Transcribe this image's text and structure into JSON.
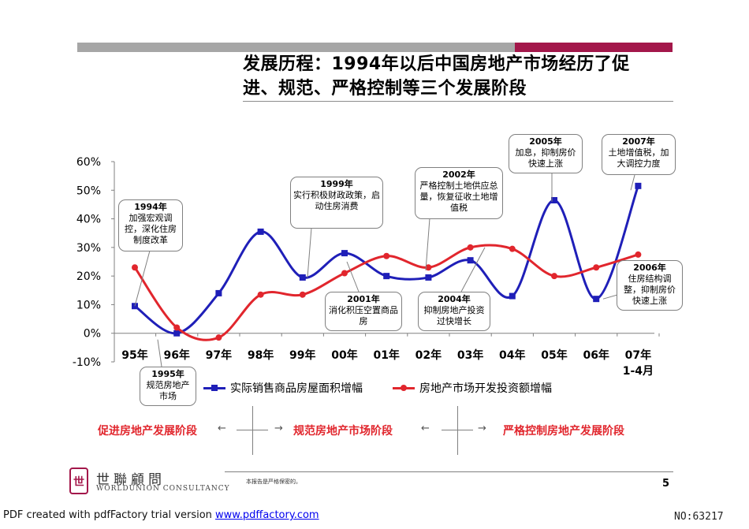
{
  "header": {
    "title_line1": "发展历程：1994年以后中国房地产市场经历了促",
    "title_line2": "进、规范、严格控制等三个发展阶段"
  },
  "colors": {
    "series1": "#1f1fb8",
    "series2": "#e1262d",
    "accent": "#a3174a",
    "gray_bar": "#a6a6a6"
  },
  "chart_data": {
    "type": "line",
    "categories": [
      "95年",
      "96年",
      "97年",
      "98年",
      "99年",
      "00年",
      "01年",
      "02年",
      "03年",
      "04年",
      "05年",
      "06年",
      "07年"
    ],
    "category_sublabel": "1-4月",
    "ylim": [
      -10,
      60
    ],
    "yticks": [
      "60%",
      "50%",
      "40%",
      "30%",
      "20%",
      "10%",
      "0%",
      "-10%"
    ],
    "ytick_values": [
      60,
      50,
      40,
      30,
      20,
      10,
      0,
      -10
    ],
    "series": [
      {
        "name": "实际销售商品房屋面积增幅",
        "values": [
          9.5,
          0,
          14,
          35.5,
          19.5,
          28,
          20,
          19.5,
          25.5,
          13,
          46.5,
          12,
          51.5
        ]
      },
      {
        "name": "房地产市场开发投资额增幅",
        "values": [
          23,
          2,
          -1.5,
          13.5,
          13.5,
          21,
          27,
          23,
          30,
          29.5,
          20,
          23,
          27.5
        ]
      }
    ]
  },
  "callouts": [
    {
      "id": "c1994",
      "year": "1994年",
      "text": "加强宏观调控，深化住房制度改革"
    },
    {
      "id": "c1995",
      "year": "1995年",
      "text": "规范房地产市场"
    },
    {
      "id": "c1999",
      "year": "1999年",
      "text": "实行积极财政政策，启动住房消费"
    },
    {
      "id": "c2001",
      "year": "2001年",
      "text": "消化积压空置商品房"
    },
    {
      "id": "c2002",
      "year": "2002年",
      "text": "严格控制土地供应总量，恢复征收土地增值税"
    },
    {
      "id": "c2004",
      "year": "2004年",
      "text": "抑制房地产投资过快增长"
    },
    {
      "id": "c2005",
      "year": "2005年",
      "text": "加息，抑制房价快速上涨"
    },
    {
      "id": "c2006",
      "year": "2006年",
      "text": "住房结构调整，抑制房价快速上涨"
    },
    {
      "id": "c2007",
      "year": "2007年",
      "text": "土地增值税，加大调控力度"
    }
  ],
  "stages": [
    "促进房地产发展阶段",
    "规范房地产市场阶段",
    "严格控制房地产发展阶段"
  ],
  "footer": {
    "logo_mark": "世",
    "company_cn": "世聯顧問",
    "company_en": "WORLDUNION CONSULTANCY",
    "confidential": "本报告是严格保密的。",
    "page": "5",
    "watermark_prefix": "PDF created with pdfFactory trial version ",
    "watermark_link": "www.pdffactory.com",
    "id_label": "NO:63217"
  }
}
